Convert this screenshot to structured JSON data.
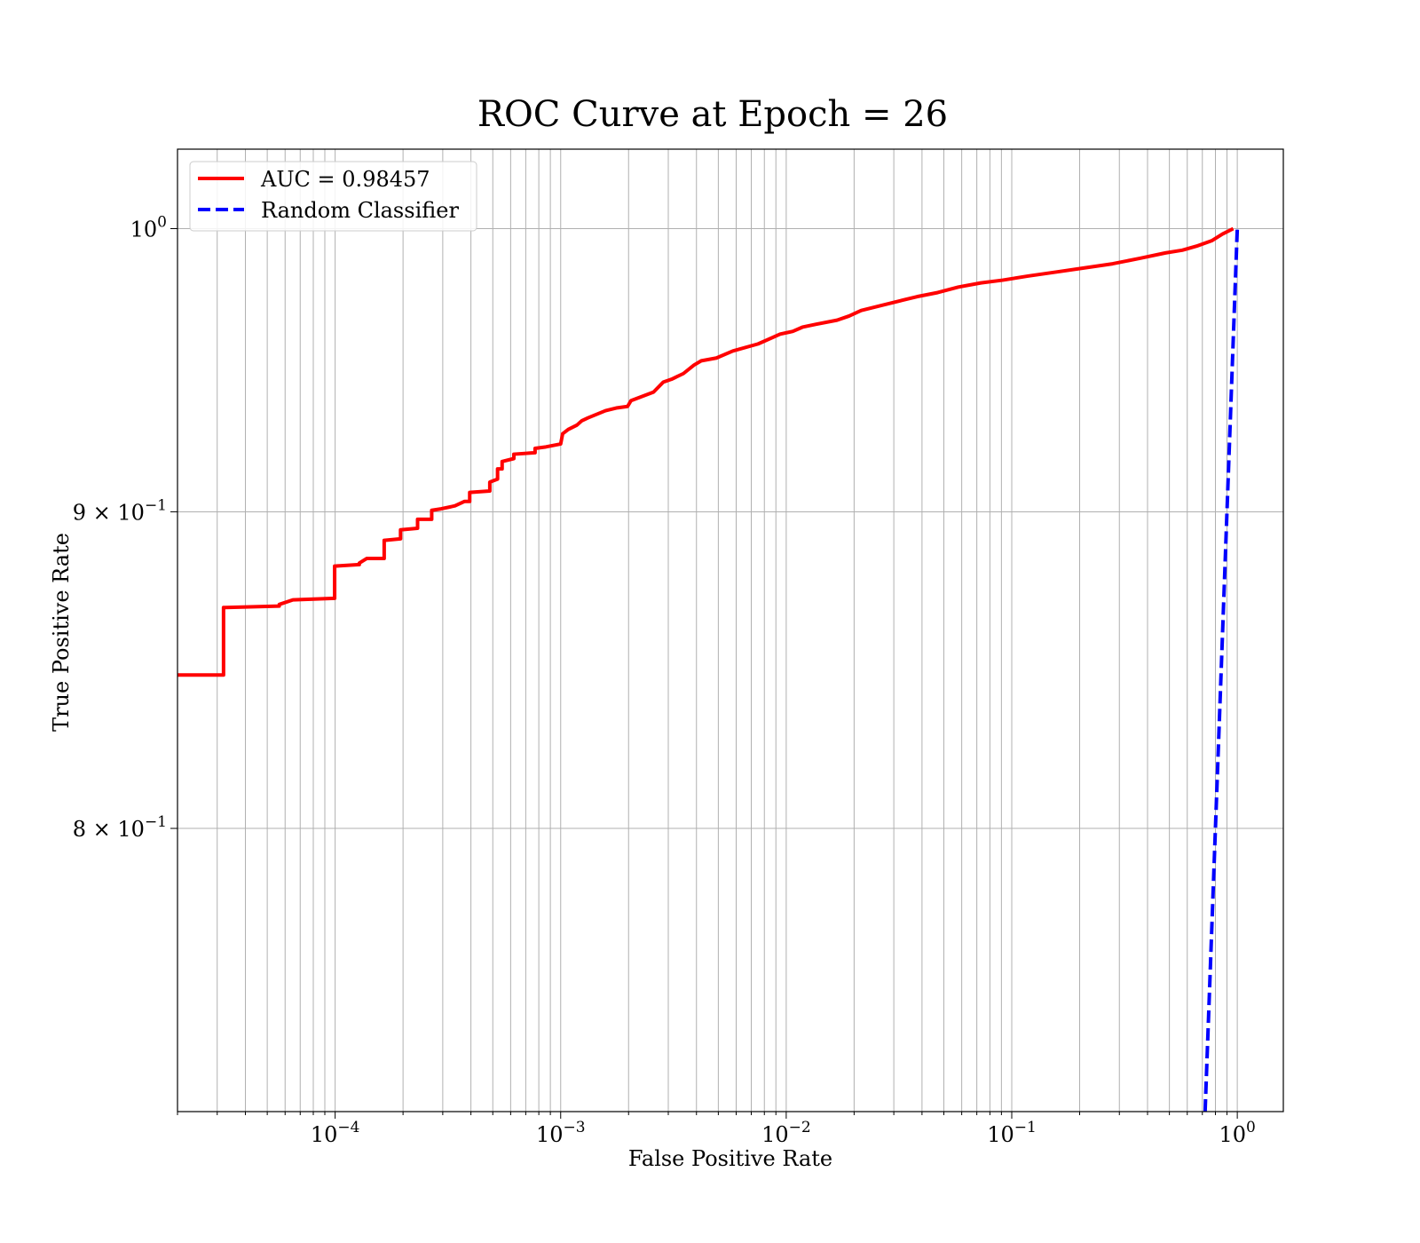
{
  "chart_data": {
    "type": "line",
    "title": "ROC Curve at Epoch = 26",
    "xlabel": "False Positive Rate",
    "ylabel": "True Positive Rate",
    "xscale": "log",
    "yscale": "log",
    "xlim": [
      2e-05,
      1.6
    ],
    "ylim": [
      0.72,
      1.03
    ],
    "grid": "both",
    "legend": "upper left",
    "x_ticks": [
      {
        "value": 0.0001,
        "base": "10",
        "exp": "−4"
      },
      {
        "value": 0.001,
        "base": "10",
        "exp": "−3"
      },
      {
        "value": 0.01,
        "base": "10",
        "exp": "−2"
      },
      {
        "value": 0.1,
        "base": "10",
        "exp": "−1"
      },
      {
        "value": 1,
        "base": "10",
        "exp": "0"
      }
    ],
    "y_ticks": [
      {
        "value": 1.0,
        "base": "10",
        "exp": "0",
        "mant": ""
      },
      {
        "value": 0.9,
        "base": "10",
        "exp": "−1",
        "mant": "9 × "
      },
      {
        "value": 0.8,
        "base": "10",
        "exp": "−1",
        "mant": "8 × "
      }
    ],
    "series": [
      {
        "name": "AUC = 0.98457",
        "color": "#ff0000",
        "style": "solid",
        "points": [
          [
            2e-05,
            0.847
          ],
          [
            3.2e-05,
            0.847
          ],
          [
            3.2e-05,
            0.8685
          ],
          [
            5.65e-05,
            0.869
          ],
          [
            5.65e-05,
            0.8695
          ],
          [
            6.5e-05,
            0.871
          ],
          [
            9.95e-05,
            0.8715
          ],
          [
            9.95e-05,
            0.882
          ],
          [
            0.000128,
            0.8825
          ],
          [
            0.000128,
            0.883
          ],
          [
            0.000138,
            0.8845
          ],
          [
            0.000165,
            0.8845
          ],
          [
            0.000165,
            0.8905
          ],
          [
            0.000195,
            0.891
          ],
          [
            0.000195,
            0.894
          ],
          [
            0.000232,
            0.8945
          ],
          [
            0.000232,
            0.8975
          ],
          [
            0.000268,
            0.8975
          ],
          [
            0.000268,
            0.9005
          ],
          [
            0.000295,
            0.901
          ],
          [
            0.00034,
            0.902
          ],
          [
            0.000375,
            0.9035
          ],
          [
            0.000395,
            0.9035
          ],
          [
            0.000395,
            0.9065
          ],
          [
            0.000485,
            0.907
          ],
          [
            0.000485,
            0.91
          ],
          [
            0.000525,
            0.911
          ],
          [
            0.000525,
            0.9145
          ],
          [
            0.00055,
            0.9145
          ],
          [
            0.00055,
            0.917
          ],
          [
            0.00062,
            0.918
          ],
          [
            0.00062,
            0.9195
          ],
          [
            0.00077,
            0.92
          ],
          [
            0.00077,
            0.9215
          ],
          [
            0.00086,
            0.922
          ],
          [
            0.001,
            0.923
          ],
          [
            0.00102,
            0.9265
          ],
          [
            0.00108,
            0.928
          ],
          [
            0.00118,
            0.9295
          ],
          [
            0.00124,
            0.931
          ],
          [
            0.00132,
            0.932
          ],
          [
            0.00158,
            0.9345
          ],
          [
            0.00178,
            0.9355
          ],
          [
            0.00198,
            0.936
          ],
          [
            0.00205,
            0.938
          ],
          [
            0.00258,
            0.941
          ],
          [
            0.00285,
            0.9445
          ],
          [
            0.0031,
            0.9455
          ],
          [
            0.0035,
            0.9475
          ],
          [
            0.0039,
            0.9505
          ],
          [
            0.0042,
            0.952
          ],
          [
            0.0049,
            0.953
          ],
          [
            0.0058,
            0.9555
          ],
          [
            0.0075,
            0.958
          ],
          [
            0.0094,
            0.9615
          ],
          [
            0.0107,
            0.9625
          ],
          [
            0.0118,
            0.964
          ],
          [
            0.0135,
            0.965
          ],
          [
            0.0168,
            0.9665
          ],
          [
            0.019,
            0.968
          ],
          [
            0.0215,
            0.97
          ],
          [
            0.027,
            0.972
          ],
          [
            0.032,
            0.9735
          ],
          [
            0.038,
            0.975
          ],
          [
            0.047,
            0.9765
          ],
          [
            0.058,
            0.9785
          ],
          [
            0.073,
            0.98
          ],
          [
            0.091,
            0.981
          ],
          [
            0.118,
            0.9825
          ],
          [
            0.158,
            0.984
          ],
          [
            0.21,
            0.9855
          ],
          [
            0.28,
            0.987
          ],
          [
            0.37,
            0.989
          ],
          [
            0.48,
            0.991
          ],
          [
            0.57,
            0.992
          ],
          [
            0.66,
            0.9935
          ],
          [
            0.77,
            0.9955
          ],
          [
            0.86,
            0.998
          ],
          [
            0.96,
            1.0
          ]
        ]
      },
      {
        "name": "Random Classifier",
        "color": "#0000ff",
        "style": "dashed",
        "points": [
          [
            0.72,
            0.72
          ],
          [
            1.0,
            1.0
          ]
        ]
      }
    ]
  }
}
